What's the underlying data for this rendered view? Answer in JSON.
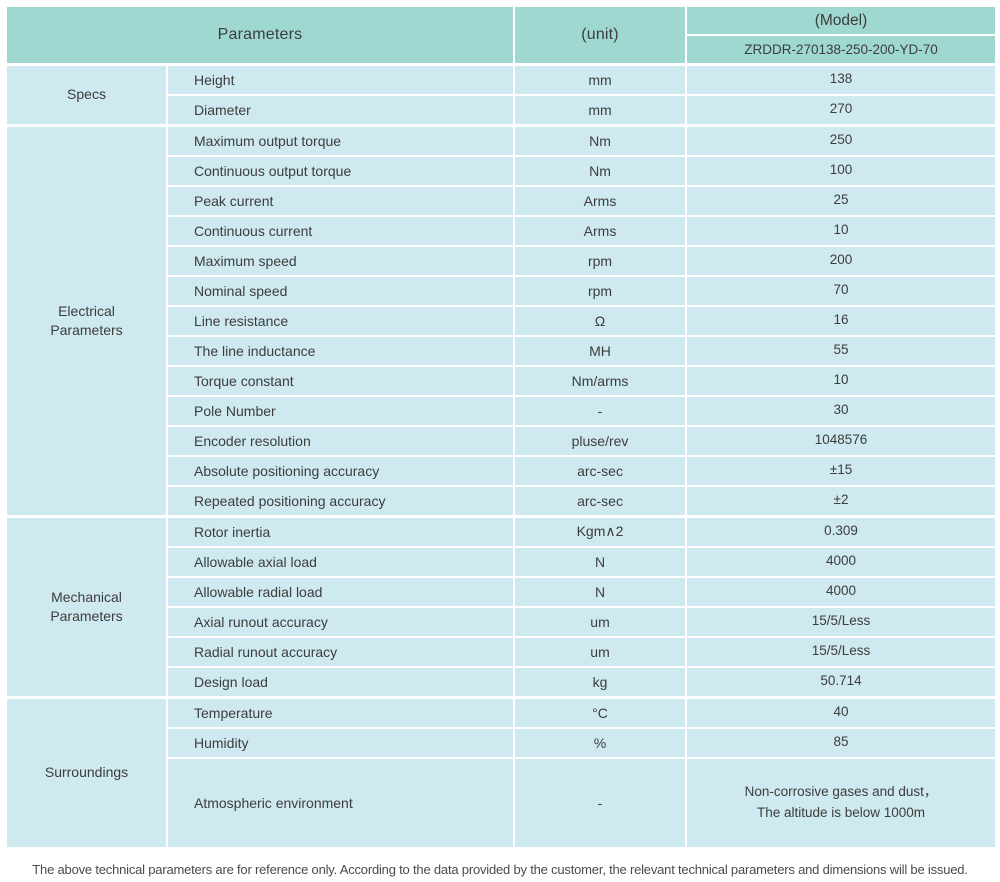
{
  "colors": {
    "header_bg": "#9fd8d0",
    "row_bg": "#cee9ef",
    "text": "#3d3d3d"
  },
  "header": {
    "parameters_label": "Parameters",
    "unit_label": "(unit)",
    "model_label": "(Model)",
    "model_value": "ZRDDR-270138-250-200-YD-70"
  },
  "sections": [
    {
      "name": "Specs",
      "rows": [
        {
          "param": "Height",
          "unit": "mm",
          "value": "138"
        },
        {
          "param": "Diameter",
          "unit": "mm",
          "value": "270"
        }
      ]
    },
    {
      "name": "Electrical\nParameters",
      "rows": [
        {
          "param": "Maximum output torque",
          "unit": "Nm",
          "value": "250"
        },
        {
          "param": "Continuous output torque",
          "unit": "Nm",
          "value": "100"
        },
        {
          "param": "Peak current",
          "unit": "Arms",
          "value": "25"
        },
        {
          "param": "Continuous current",
          "unit": "Arms",
          "value": "10"
        },
        {
          "param": "Maximum speed",
          "unit": "rpm",
          "value": "200"
        },
        {
          "param": "Nominal speed",
          "unit": "rpm",
          "value": "70"
        },
        {
          "param": "Line resistance",
          "unit": "Ω",
          "value": "16"
        },
        {
          "param": "The line inductance",
          "unit": "MH",
          "value": "55"
        },
        {
          "param": "Torque constant",
          "unit": "Nm/arms",
          "value": "10"
        },
        {
          "param": "Pole Number",
          "unit": "-",
          "value": "30"
        },
        {
          "param": "Encoder resolution",
          "unit": "pluse/rev",
          "value": "1048576"
        },
        {
          "param": "Absolute positioning accuracy",
          "unit": "arc-sec",
          "value": "±15"
        },
        {
          "param": "Repeated positioning accuracy",
          "unit": "arc-sec",
          "value": "±2"
        }
      ]
    },
    {
      "name": "Mechanical\nParameters",
      "rows": [
        {
          "param": "Rotor inertia",
          "unit": "Kgm∧2",
          "value": "0.309"
        },
        {
          "param": "Allowable axial load",
          "unit": "N",
          "value": "4000"
        },
        {
          "param": "Allowable radial load",
          "unit": "N",
          "value": "4000"
        },
        {
          "param": "Axial runout accuracy",
          "unit": "um",
          "value": "15/5/Less"
        },
        {
          "param": "Radial runout accuracy",
          "unit": "um",
          "value": "15/5/Less"
        },
        {
          "param": "Design load",
          "unit": "kg",
          "value": "50.714"
        }
      ]
    },
    {
      "name": "Surroundings",
      "rows": [
        {
          "param": "Temperature",
          "unit": "°C",
          "value": "40"
        },
        {
          "param": "Humidity",
          "unit": "%",
          "value": "85"
        },
        {
          "param": "Atmospheric environment",
          "unit": "-",
          "value": "Non-corrosive gases and dust，\nThe altitude is below 1000m"
        }
      ]
    }
  ],
  "footer": {
    "note": "The above technical parameters are for reference only. According to the data provided by the customer, the relevant technical parameters and dimensions will be issued."
  }
}
